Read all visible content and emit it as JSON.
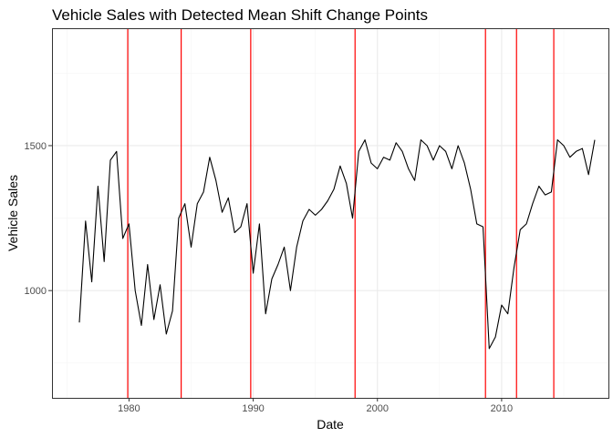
{
  "chart_data": {
    "type": "line",
    "title": "Vehicle Sales with Detected Mean Shift Change Points",
    "xlabel": "Date",
    "ylabel": "Vehicle Sales",
    "x_ticks": [
      1980,
      1990,
      2000,
      2010
    ],
    "y_ticks": [
      1000,
      1500
    ],
    "xlim": [
      1973.8,
      2018.6
    ],
    "ylim": [
      630,
      1905
    ],
    "grid": true,
    "colors": {
      "line": "#000000",
      "changepoint": "#ff0000",
      "grid_major": "#ebebeb",
      "grid_minor": "#f5f5f5",
      "border": "#333333"
    },
    "change_points": [
      1979.9,
      1984.2,
      1989.8,
      1998.2,
      2008.7,
      2011.2,
      2014.2
    ],
    "x": [
      1976.0,
      1976.5,
      1977.0,
      1977.5,
      1978.0,
      1978.5,
      1979.0,
      1979.5,
      1980.0,
      1980.5,
      1981.0,
      1981.5,
      1982.0,
      1982.5,
      1983.0,
      1983.5,
      1984.0,
      1984.5,
      1985.0,
      1985.5,
      1986.0,
      1986.5,
      1987.0,
      1987.5,
      1988.0,
      1988.5,
      1989.0,
      1989.5,
      1990.0,
      1990.5,
      1991.0,
      1991.5,
      1992.0,
      1992.5,
      1993.0,
      1993.5,
      1994.0,
      1994.5,
      1995.0,
      1995.5,
      1996.0,
      1996.5,
      1997.0,
      1997.5,
      1998.0,
      1998.5,
      1999.0,
      1999.5,
      2000.0,
      2000.5,
      2001.0,
      2001.5,
      2002.0,
      2002.5,
      2003.0,
      2003.5,
      2004.0,
      2004.5,
      2005.0,
      2005.5,
      2006.0,
      2006.5,
      2007.0,
      2007.5,
      2008.0,
      2008.5,
      2009.0,
      2009.5,
      2010.0,
      2010.5,
      2011.0,
      2011.5,
      2012.0,
      2012.5,
      2013.0,
      2013.5,
      2014.0,
      2014.5,
      2015.0,
      2015.5,
      2016.0,
      2016.5,
      2017.0,
      2017.5
    ],
    "y": [
      890,
      1240,
      1030,
      1360,
      1100,
      1450,
      1480,
      1180,
      1230,
      1000,
      880,
      1090,
      900,
      1020,
      850,
      930,
      1250,
      1300,
      1150,
      1300,
      1340,
      1460,
      1380,
      1270,
      1320,
      1200,
      1220,
      1300,
      1060,
      1230,
      920,
      1040,
      1090,
      1150,
      1000,
      1150,
      1240,
      1280,
      1260,
      1280,
      1310,
      1350,
      1430,
      1370,
      1250,
      1480,
      1520,
      1440,
      1420,
      1460,
      1450,
      1510,
      1480,
      1420,
      1380,
      1520,
      1500,
      1450,
      1500,
      1480,
      1420,
      1500,
      1440,
      1350,
      1230,
      1220,
      800,
      840,
      950,
      920,
      1080,
      1210,
      1230,
      1300,
      1360,
      1330,
      1340,
      1520,
      1500,
      1460,
      1480,
      1490,
      1400,
      1520
    ]
  }
}
